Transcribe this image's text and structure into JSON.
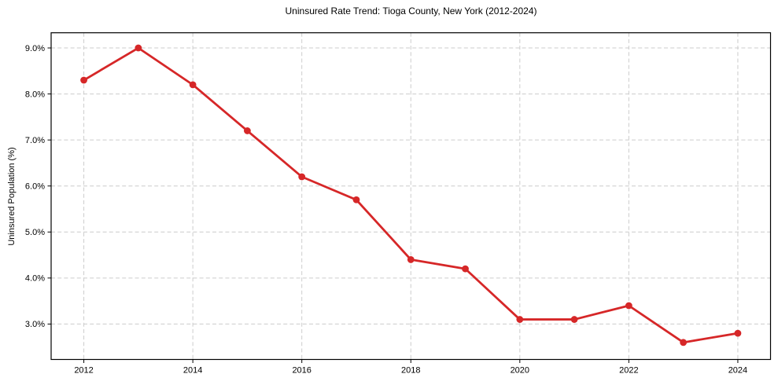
{
  "chart_data": {
    "type": "line",
    "title": "Uninsured Rate Trend: Tioga County, New York (2012-2024)",
    "xlabel": "",
    "ylabel": "Uninsured Population (%)",
    "x": [
      2012,
      2013,
      2014,
      2015,
      2016,
      2017,
      2018,
      2019,
      2020,
      2021,
      2022,
      2023,
      2024
    ],
    "values": [
      8.3,
      9.0,
      8.2,
      7.2,
      6.2,
      5.7,
      4.4,
      4.2,
      3.1,
      3.1,
      3.4,
      2.6,
      2.8
    ],
    "xticks": [
      2012,
      2014,
      2016,
      2018,
      2020,
      2022,
      2024
    ],
    "xtick_labels": [
      "2012",
      "2014",
      "2016",
      "2018",
      "2020",
      "2022",
      "2024"
    ],
    "yticks": [
      3,
      4,
      5,
      6,
      7,
      8,
      9
    ],
    "ytick_labels": [
      "3.0%",
      "4.0%",
      "5.0%",
      "6.0%",
      "7.0%",
      "8.0%",
      "9.0%"
    ],
    "xlim": [
      2011.4,
      2024.6
    ],
    "ylim": [
      2.23,
      9.33
    ],
    "grid": true,
    "grid_style": "dashed",
    "legend": "none",
    "marker": "circle",
    "line_color": "#d62728",
    "grid_color": "#cccccc",
    "spine_color": "#000000",
    "background": "#ffffff"
  }
}
